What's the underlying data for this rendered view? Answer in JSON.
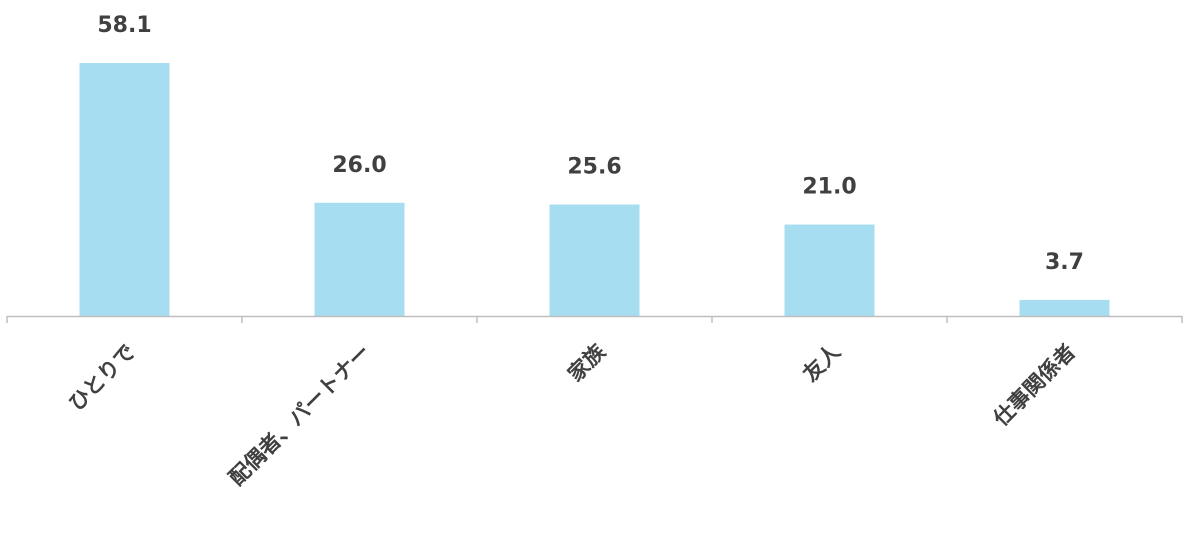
{
  "chart_data": {
    "type": "bar",
    "categories": [
      "ひとりで",
      "配偶者、パートナー",
      "家族",
      "友人",
      "仕事関係者"
    ],
    "values": [
      58.1,
      26.0,
      25.6,
      21.0,
      3.7
    ],
    "value_labels": [
      "58.1",
      "26.0",
      "25.6",
      "21.0",
      "3.7"
    ],
    "ylim": [
      0,
      58.1
    ],
    "grid": false,
    "legend": "none",
    "colors": {
      "bar": "#a6ddf0",
      "axis": "#bfbfbf",
      "text": "#404040"
    }
  }
}
